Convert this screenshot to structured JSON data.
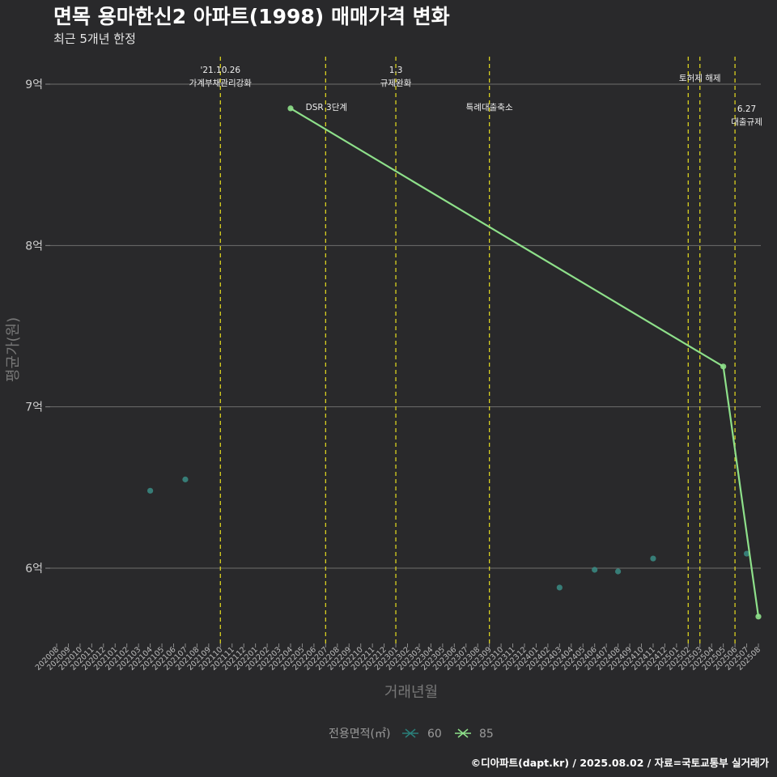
{
  "chart_data": {
    "type": "line",
    "title": "면목 용마한신2 아파트(1998) 매매가격 변화",
    "subtitle": "최근 5개년 한정",
    "xlabel": "거래년월",
    "ylabel": "평균가(원)",
    "caption": "©디아파트(dapt.kr) / 2025.08.02 / 자료=국토교통부 실거래가",
    "ylim": [
      5.55,
      9.2
    ],
    "yticks": [
      {
        "value": 6,
        "label": "6억"
      },
      {
        "value": 7,
        "label": "7억"
      },
      {
        "value": 8,
        "label": "8억"
      },
      {
        "value": 9,
        "label": "9억"
      }
    ],
    "x_categories": [
      "202008",
      "202009",
      "202010",
      "202011",
      "202012",
      "202101",
      "202102",
      "202103",
      "202104",
      "202105",
      "202106",
      "202107",
      "202108",
      "202109",
      "202110",
      "202111",
      "202112",
      "202201",
      "202202",
      "202203",
      "202204",
      "202205",
      "202206",
      "202207",
      "202208",
      "202209",
      "202210",
      "202211",
      "202212",
      "202301",
      "202302",
      "202303",
      "202304",
      "202305",
      "202306",
      "202307",
      "202308",
      "202309",
      "202310",
      "202311",
      "202312",
      "202401",
      "202402",
      "202403",
      "202404",
      "202405",
      "202406",
      "202407",
      "202408",
      "202409",
      "202410",
      "202411",
      "202412",
      "202501",
      "202502",
      "202503",
      "202504",
      "202505",
      "202506",
      "202507",
      "202508"
    ],
    "legend": {
      "title": "전용면적(㎡)",
      "entries": [
        {
          "name": "60",
          "color": "#2a7f7a"
        },
        {
          "name": "85",
          "color": "#8ee08a"
        }
      ]
    },
    "series": [
      {
        "name": "60",
        "color": "#3a8c85",
        "line": false,
        "points": [
          {
            "x": "202104",
            "y": 6.48
          },
          {
            "x": "202107",
            "y": 6.55
          },
          {
            "x": "202403",
            "y": 5.88
          },
          {
            "x": "202406",
            "y": 5.99
          },
          {
            "x": "202408",
            "y": 5.98
          },
          {
            "x": "202411",
            "y": 6.06
          },
          {
            "x": "202507",
            "y": 6.09
          }
        ]
      },
      {
        "name": "85",
        "color": "#8ee08a",
        "line": true,
        "points": [
          {
            "x": "202204",
            "y": 8.85
          },
          {
            "x": "202505",
            "y": 7.25
          },
          {
            "x": "202508",
            "y": 5.7
          }
        ]
      }
    ],
    "vlines": [
      "202110",
      "202207",
      "202301",
      "202309",
      "202502",
      "202503",
      "202506"
    ],
    "annotations": [
      {
        "id": "a1",
        "x": "202110",
        "y": 9.07,
        "lines": [
          "'21.10.26",
          "가계부채관리강화"
        ]
      },
      {
        "id": "a2",
        "x": "202207",
        "y": 8.84,
        "lines": [
          "DSR 3단계"
        ]
      },
      {
        "id": "a3",
        "x": "202301",
        "y": 9.07,
        "lines": [
          "1.3",
          "규제완화"
        ]
      },
      {
        "id": "a4",
        "x": "202309",
        "y": 8.84,
        "lines": [
          "특례대출축소"
        ]
      },
      {
        "id": "a5",
        "x": "202503",
        "y": 9.02,
        "lines": [
          "토허제 해제"
        ]
      },
      {
        "id": "a6",
        "x": "202507",
        "y": 8.83,
        "lines": [
          "6.27",
          "대출규제"
        ]
      }
    ]
  }
}
